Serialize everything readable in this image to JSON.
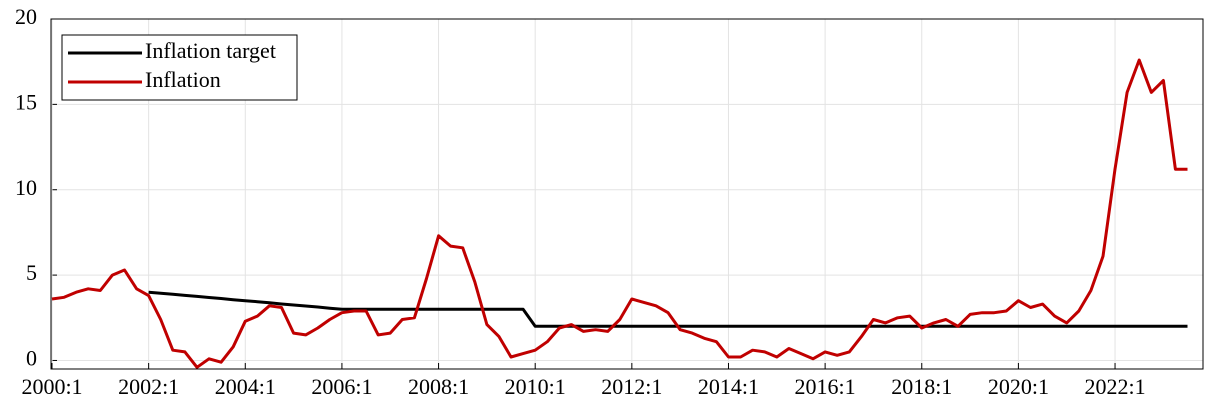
{
  "chart_data": {
    "type": "line",
    "categories": [
      "2000:1",
      null,
      null,
      null,
      null,
      null,
      null,
      null,
      "2002:1",
      null,
      null,
      null,
      null,
      null,
      null,
      null,
      "2004:1",
      null,
      null,
      null,
      null,
      null,
      null,
      null,
      "2006:1",
      null,
      null,
      null,
      null,
      null,
      null,
      null,
      "2008:1",
      null,
      null,
      null,
      null,
      null,
      null,
      null,
      "2010:1",
      null,
      null,
      null,
      null,
      null,
      null,
      null,
      "2012:1",
      null,
      null,
      null,
      null,
      null,
      null,
      null,
      "2014:1",
      null,
      null,
      null,
      null,
      null,
      null,
      null,
      "2016:1",
      null,
      null,
      null,
      null,
      null,
      null,
      null,
      "2018:1",
      null,
      null,
      null,
      null,
      null,
      null,
      null,
      "2020:1",
      null,
      null,
      null,
      null,
      null,
      null,
      null,
      "2022:1",
      null,
      null,
      null,
      null,
      null,
      null
    ],
    "series": [
      {
        "name": "Inflation target",
        "color": "#000000",
        "values": [
          null,
          null,
          null,
          null,
          null,
          null,
          null,
          null,
          4,
          3.94,
          3.88,
          3.81,
          3.75,
          3.69,
          3.63,
          3.56,
          3.5,
          3.44,
          3.38,
          3.31,
          3.25,
          3.19,
          3.13,
          3.06,
          3,
          3,
          3,
          3,
          3,
          3,
          3,
          3,
          3,
          3,
          3,
          3,
          3,
          3,
          3,
          3,
          2,
          2,
          2,
          2,
          2,
          2,
          2,
          2,
          2,
          2,
          2,
          2,
          2,
          2,
          2,
          2,
          2,
          2,
          2,
          2,
          2,
          2,
          2,
          2,
          2,
          2,
          2,
          2,
          2,
          2,
          2,
          2,
          2,
          2,
          2,
          2,
          2,
          2,
          2,
          2,
          2,
          2,
          2,
          2,
          2,
          2,
          2,
          2,
          2,
          2,
          2,
          2,
          2,
          2,
          2
        ]
      },
      {
        "name": "Inflation",
        "color": "#c00000",
        "values": [
          3.6,
          3.7,
          4.0,
          4.2,
          4.1,
          5.0,
          5.3,
          4.2,
          3.8,
          2.4,
          0.6,
          0.5,
          -0.4,
          0.1,
          -0.1,
          0.8,
          2.3,
          2.6,
          3.2,
          3.1,
          1.6,
          1.5,
          1.9,
          2.4,
          2.8,
          2.9,
          2.9,
          1.5,
          1.6,
          2.4,
          2.5,
          4.8,
          7.3,
          6.7,
          6.6,
          4.6,
          2.1,
          1.4,
          0.2,
          0.4,
          0.6,
          1.1,
          1.9,
          2.1,
          1.7,
          1.8,
          1.7,
          2.4,
          3.6,
          3.4,
          3.2,
          2.8,
          1.8,
          1.6,
          1.3,
          1.1,
          0.2,
          0.2,
          0.6,
          0.5,
          0.2,
          0.7,
          0.4,
          0.1,
          0.5,
          0.3,
          0.5,
          1.4,
          2.4,
          2.2,
          2.5,
          2.6,
          1.9,
          2.2,
          2.4,
          2.0,
          2.7,
          2.8,
          2.8,
          2.9,
          3.5,
          3.1,
          3.3,
          2.6,
          2.2,
          2.9,
          4.1,
          6.1,
          11.2,
          15.7,
          17.6,
          15.7,
          16.4,
          11.2,
          11.2
        ]
      }
    ],
    "ylim": [
      -0.5,
      20
    ],
    "yticks": [
      0,
      5,
      10,
      15,
      20
    ],
    "grid": true,
    "legend": "upper left"
  }
}
